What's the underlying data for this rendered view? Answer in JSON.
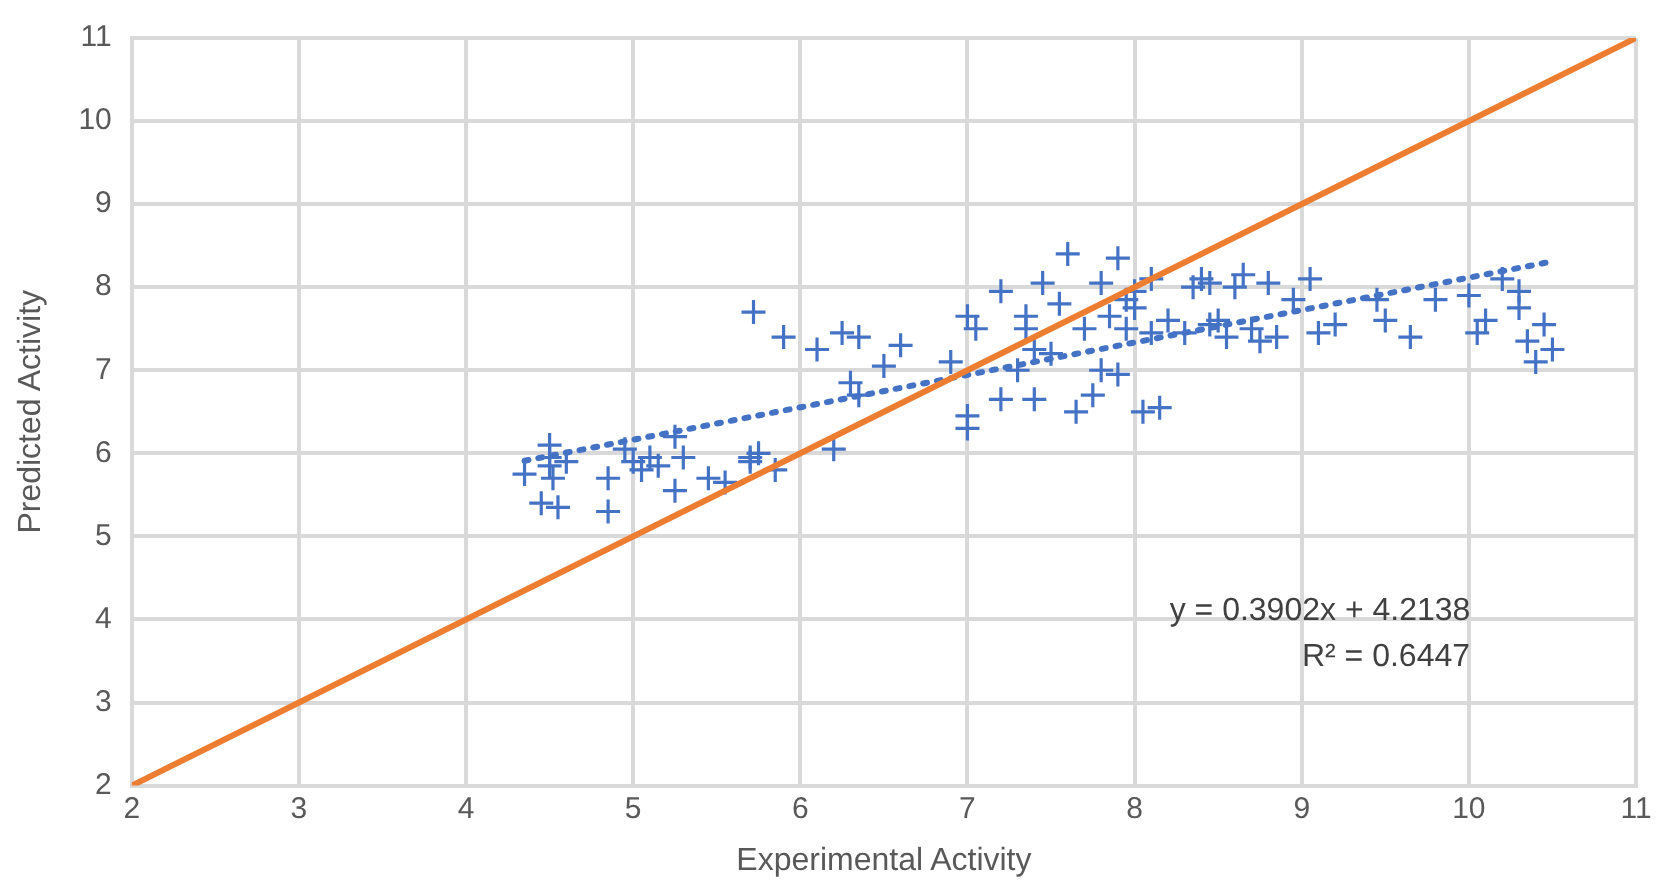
{
  "chart_data": {
    "type": "scatter",
    "xlabel": "Experimental Activity",
    "ylabel": "Predicted Activity",
    "xlim": [
      2,
      11
    ],
    "ylim": [
      2,
      11
    ],
    "xticks": [
      2,
      3,
      4,
      5,
      6,
      7,
      8,
      9,
      10,
      11
    ],
    "yticks": [
      2,
      3,
      4,
      5,
      6,
      7,
      8,
      9,
      10,
      11
    ],
    "grid": true,
    "legend": false,
    "series": [
      {
        "marker": "cross",
        "color": "#4472c4",
        "x": [
          4.35,
          4.45,
          4.5,
          4.5,
          4.5,
          4.52,
          4.55,
          4.6,
          4.85,
          4.85,
          4.95,
          5.0,
          5.05,
          5.1,
          5.15,
          5.25,
          5.25,
          5.3,
          5.45,
          5.55,
          5.7,
          5.7,
          5.75,
          5.72,
          5.85,
          5.9,
          6.1,
          6.2,
          6.25,
          6.35,
          6.3,
          6.35,
          6.5,
          6.6,
          6.9,
          7.0,
          7.05,
          7.0,
          7.0,
          7.2,
          7.2,
          7.3,
          7.35,
          7.35,
          7.4,
          7.4,
          7.45,
          7.5,
          7.55,
          7.6,
          7.65,
          7.75,
          7.7,
          7.8,
          7.8,
          7.9,
          7.9,
          7.95,
          8.0,
          8.05,
          8.1,
          8.15,
          8.1,
          8.2,
          8.3,
          8.35,
          8.4,
          8.45,
          8.45,
          8.5,
          8.55,
          8.6,
          8.65,
          8.7,
          8.75,
          8.8,
          8.85,
          8.95,
          9.05,
          9.1,
          9.2,
          9.45,
          9.5,
          9.65,
          9.8,
          10.0,
          10.05,
          10.1,
          10.2,
          10.3,
          10.3,
          10.35,
          10.4,
          10.45,
          10.5,
          7.95,
          7.85,
          8.0
        ],
        "values": [
          5.75,
          5.4,
          5.95,
          6.1,
          5.85,
          5.7,
          5.35,
          5.9,
          5.3,
          5.7,
          6.05,
          5.9,
          5.8,
          5.95,
          5.85,
          6.2,
          5.55,
          5.95,
          5.7,
          5.65,
          5.95,
          5.9,
          6.0,
          7.7,
          5.8,
          7.4,
          7.25,
          6.05,
          7.45,
          7.4,
          6.85,
          6.7,
          7.05,
          7.3,
          7.1,
          7.65,
          7.5,
          6.45,
          6.3,
          6.65,
          7.95,
          7.0,
          7.5,
          7.65,
          6.65,
          7.25,
          8.05,
          7.2,
          7.8,
          8.4,
          6.5,
          6.7,
          7.5,
          8.05,
          7.0,
          8.35,
          6.95,
          7.5,
          7.75,
          6.5,
          8.1,
          6.55,
          7.45,
          7.6,
          7.45,
          8.0,
          8.1,
          8.05,
          7.55,
          7.6,
          7.4,
          8.0,
          8.15,
          7.5,
          7.35,
          8.05,
          7.4,
          7.85,
          8.1,
          7.45,
          7.55,
          7.85,
          7.6,
          7.4,
          7.85,
          7.9,
          7.45,
          7.6,
          8.1,
          7.75,
          7.95,
          7.35,
          7.1,
          7.55,
          7.25,
          7.85,
          7.65,
          7.95
        ]
      },
      {
        "type": "line",
        "marker": "none",
        "line_style": "dotted",
        "color": "#4472c4",
        "x": [
          4.35,
          10.5
        ],
        "values": [
          5.91,
          8.31
        ]
      },
      {
        "type": "line",
        "marker": "none",
        "line_style": "solid",
        "color": "#ed7d31",
        "x": [
          2,
          11
        ],
        "values": [
          2,
          11
        ]
      }
    ],
    "annotations": [
      "y = 0.3902x + 4.2138",
      "R² = 0.6447"
    ]
  }
}
